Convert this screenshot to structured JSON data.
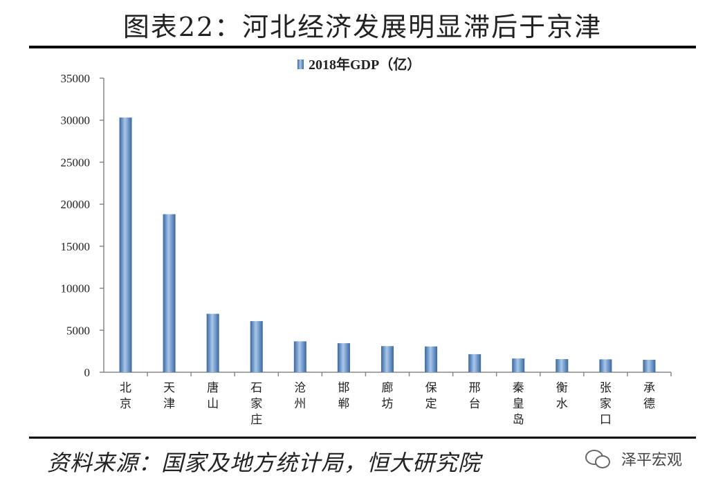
{
  "header": {
    "title": "图表22：河北经济发展明显滞后于京津"
  },
  "footer": {
    "source": "资料来源：国家及地方统计局，恒大研究院",
    "logo_text": "泽平宏观"
  },
  "chart_data": {
    "type": "bar",
    "categories": [
      "北京",
      "天津",
      "唐山",
      "石家庄",
      "沧州",
      "邯郸",
      "廊坊",
      "保定",
      "邢台",
      "秦皇岛",
      "衡水",
      "张家口",
      "承德"
    ],
    "series": [
      {
        "name": "2018年GDP（亿）",
        "values": [
          30320,
          18810,
          6955,
          6083,
          3676,
          3455,
          3108,
          3070,
          2150,
          1636,
          1559,
          1536,
          1481
        ]
      }
    ],
    "ylim": [
      0,
      35000
    ],
    "yticks": [
      "0",
      "5000",
      "10000",
      "15000",
      "20000",
      "25000",
      "30000",
      "35000"
    ],
    "grid": false,
    "legend_position": "top-center",
    "colors": {
      "bar": "#4f81bd",
      "bar_light": "#9cc0e8",
      "bar_dark": "#3a66a0"
    }
  }
}
